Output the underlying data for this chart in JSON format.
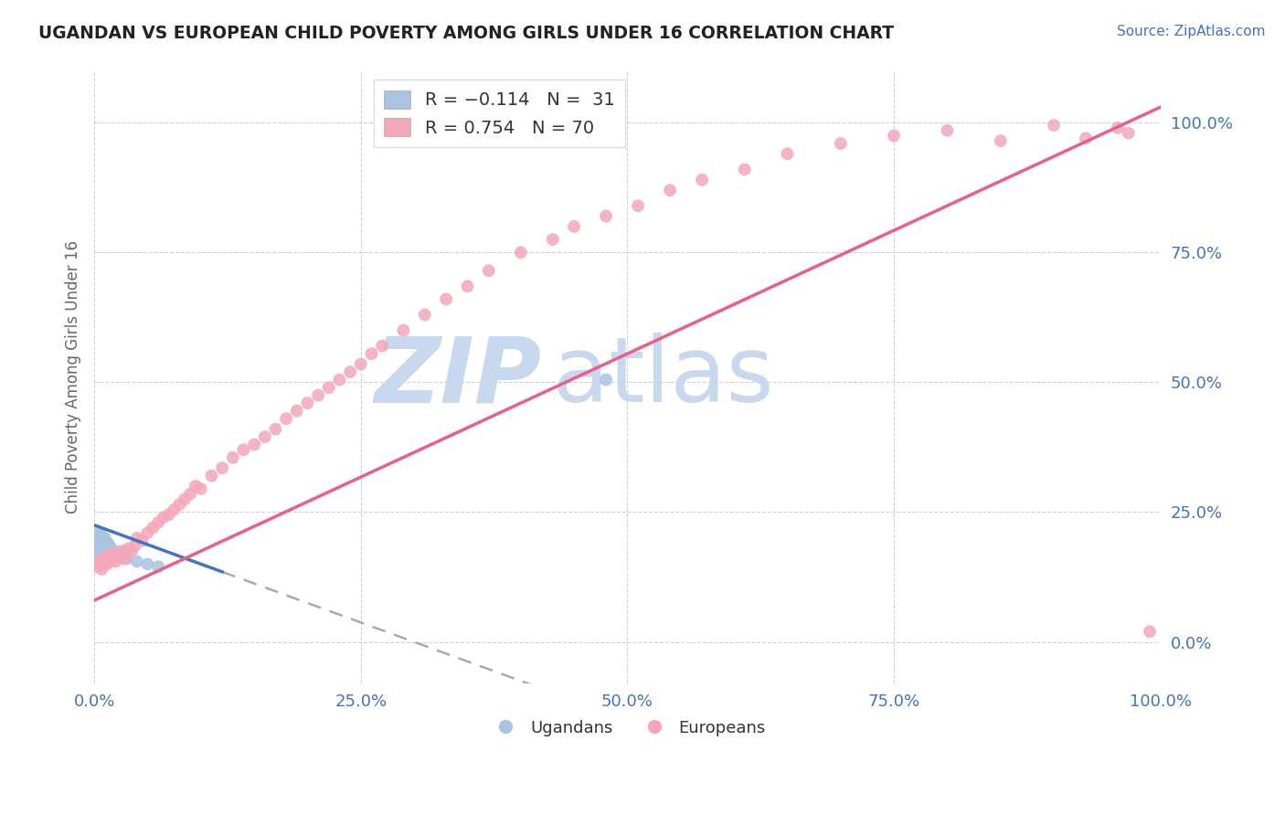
{
  "title": "UGANDAN VS EUROPEAN CHILD POVERTY AMONG GIRLS UNDER 16 CORRELATION CHART",
  "source": "Source: ZipAtlas.com",
  "ylabel": "Child Poverty Among Girls Under 16",
  "ugandan_color": "#a8c4e0",
  "european_color": "#f4a7b9",
  "ugandan_line_color": "#4472c4",
  "european_line_color": "#e8608a",
  "R_ugandan": -0.114,
  "N_ugandan": 31,
  "R_european": 0.754,
  "N_european": 70,
  "background_color": "#ffffff",
  "plot_bg_color": "#ffffff",
  "grid_color": "#cccccc",
  "watermark_zip": "ZIP",
  "watermark_atlas": "atlas",
  "watermark_color_zip": "#c8d8ee",
  "watermark_color_atlas": "#c8d8ee",
  "tick_color": "#4472c4",
  "ytick_side": "right",
  "ugandan_x": [
    0.001,
    0.002,
    0.003,
    0.004,
    0.004,
    0.005,
    0.005,
    0.006,
    0.006,
    0.007,
    0.007,
    0.008,
    0.008,
    0.009,
    0.009,
    0.01,
    0.01,
    0.011,
    0.012,
    0.013,
    0.014,
    0.015,
    0.016,
    0.018,
    0.02,
    0.025,
    0.03,
    0.04,
    0.05,
    0.06,
    0.48
  ],
  "ugandan_y": [
    0.195,
    0.18,
    0.165,
    0.2,
    0.21,
    0.175,
    0.195,
    0.185,
    0.205,
    0.19,
    0.2,
    0.18,
    0.195,
    0.175,
    0.185,
    0.19,
    0.2,
    0.185,
    0.18,
    0.19,
    0.185,
    0.175,
    0.18,
    0.17,
    0.165,
    0.17,
    0.16,
    0.155,
    0.15,
    0.145,
    0.505
  ],
  "european_x": [
    0.003,
    0.005,
    0.007,
    0.009,
    0.01,
    0.012,
    0.014,
    0.016,
    0.018,
    0.02,
    0.022,
    0.025,
    0.028,
    0.03,
    0.032,
    0.035,
    0.038,
    0.04,
    0.045,
    0.05,
    0.055,
    0.06,
    0.065,
    0.07,
    0.075,
    0.08,
    0.085,
    0.09,
    0.095,
    0.1,
    0.11,
    0.12,
    0.13,
    0.14,
    0.15,
    0.16,
    0.17,
    0.18,
    0.19,
    0.2,
    0.21,
    0.22,
    0.23,
    0.24,
    0.25,
    0.26,
    0.27,
    0.29,
    0.31,
    0.33,
    0.35,
    0.37,
    0.4,
    0.43,
    0.45,
    0.48,
    0.51,
    0.54,
    0.57,
    0.61,
    0.65,
    0.7,
    0.75,
    0.8,
    0.85,
    0.9,
    0.93,
    0.96,
    0.97,
    0.99
  ],
  "european_y": [
    0.145,
    0.155,
    0.14,
    0.16,
    0.165,
    0.15,
    0.155,
    0.16,
    0.17,
    0.155,
    0.165,
    0.175,
    0.16,
    0.17,
    0.18,
    0.175,
    0.185,
    0.2,
    0.195,
    0.21,
    0.22,
    0.23,
    0.24,
    0.245,
    0.255,
    0.265,
    0.275,
    0.285,
    0.3,
    0.295,
    0.32,
    0.335,
    0.355,
    0.37,
    0.38,
    0.395,
    0.41,
    0.43,
    0.445,
    0.46,
    0.475,
    0.49,
    0.505,
    0.52,
    0.535,
    0.555,
    0.57,
    0.6,
    0.63,
    0.66,
    0.685,
    0.715,
    0.75,
    0.775,
    0.8,
    0.82,
    0.84,
    0.87,
    0.89,
    0.91,
    0.94,
    0.96,
    0.975,
    0.985,
    0.965,
    0.995,
    0.97,
    0.99,
    0.98,
    0.02
  ],
  "xlim": [
    0.0,
    1.0
  ],
  "ylim": [
    -0.08,
    1.1
  ],
  "xticks": [
    0.0,
    0.25,
    0.5,
    0.75,
    1.0
  ],
  "yticks": [
    0.0,
    0.25,
    0.5,
    0.75,
    1.0
  ],
  "xticklabels": [
    "0.0%",
    "25.0%",
    "50.0%",
    "75.0%",
    "100.0%"
  ],
  "yticklabels": [
    "0.0%",
    "25.0%",
    "50.0%",
    "75.0%",
    "100.0%"
  ]
}
